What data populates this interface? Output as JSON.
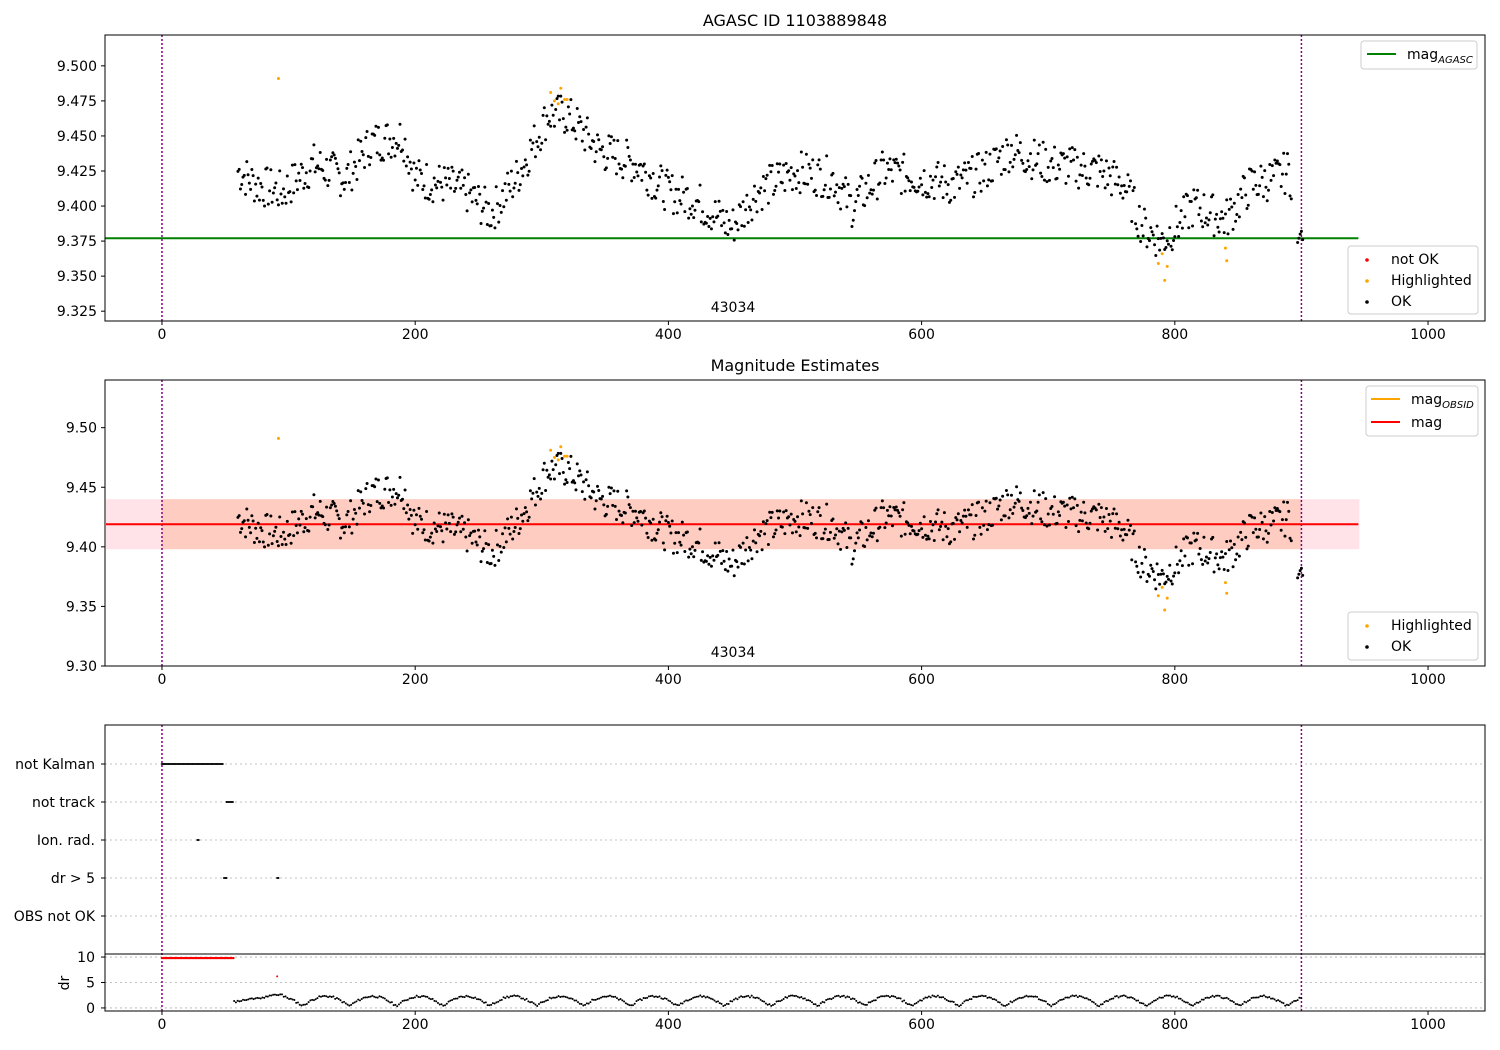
{
  "chart_data": [
    {
      "type": "scatter",
      "title": "AGASC ID 1103889848",
      "xlim": [
        -45,
        1045
      ],
      "ylim": [
        9.318,
        9.522
      ],
      "xticks": [
        "0",
        "200",
        "400",
        "600",
        "800",
        "1000"
      ],
      "yticks": [
        "9.325",
        "9.350",
        "9.375",
        "9.400",
        "9.425",
        "9.450",
        "9.475",
        "9.500"
      ],
      "annotation": "43034",
      "vlines": [
        0,
        900
      ],
      "hline": {
        "name": "mag_AGASC",
        "y": 9.377,
        "x_range": [
          -45,
          945
        ],
        "color": "#008000"
      },
      "legend_top": [
        "mag"
      ],
      "legend_top_sub": "AGASC",
      "legend_bottom": [
        "not OK",
        "Highlighted",
        "OK"
      ],
      "colors": {
        "ok": "#000000",
        "highlighted": "#ffa500",
        "not_ok": "#ff0000",
        "vline": "#800080"
      }
    },
    {
      "type": "scatter",
      "title": "Magnitude Estimates",
      "xlim": [
        -45,
        1045
      ],
      "ylim": [
        9.3,
        9.54
      ],
      "xticks": [
        "0",
        "200",
        "400",
        "600",
        "800",
        "1000"
      ],
      "yticks": [
        "9.30",
        "9.35",
        "9.40",
        "9.45",
        "9.50"
      ],
      "annotation": "43034",
      "vlines": [
        0,
        900
      ],
      "mag_line": {
        "y": 9.419,
        "x_range": [
          -45,
          945
        ],
        "color": "#ff0000"
      },
      "mag_band": {
        "y_range": [
          9.398,
          9.44
        ],
        "color": "#ffc0cb"
      },
      "obsid_band": {
        "y_range": [
          9.398,
          9.44
        ],
        "color": "#ffa07a"
      },
      "legend_top": [
        "mag",
        "mag"
      ],
      "legend_top_sub": "OBSID",
      "legend_bottom": [
        "Highlighted",
        "OK"
      ]
    },
    {
      "type": "scatter",
      "title": "",
      "xlim": [
        -45,
        1045
      ],
      "categories": [
        "not Kalman",
        "not track",
        "Ion. rad.",
        "dr > 5",
        "OBS not OK"
      ],
      "flags": {
        "not Kalman": [
          [
            0,
            48
          ]
        ],
        "not track": [
          [
            51,
            56
          ]
        ],
        "Ion. rad.": [
          [
            28,
            29
          ]
        ],
        "dr > 5": [
          [
            49,
            51
          ],
          [
            91,
            92
          ]
        ],
        "OBS not OK": []
      },
      "dr_ylabel": "dr",
      "dr_yticks": [
        "0",
        "5",
        "10"
      ],
      "dr_ylim": [
        -0.6,
        10.6
      ],
      "xticks": [
        "0",
        "200",
        "400",
        "600",
        "800",
        "1000"
      ],
      "vlines": [
        0,
        900
      ]
    }
  ]
}
